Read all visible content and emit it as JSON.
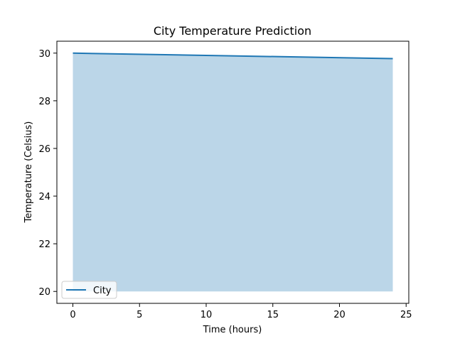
{
  "chart_data": {
    "type": "line",
    "title": "City Temperature Prediction",
    "xlabel": "Time (hours)",
    "ylabel": "Temperature (Celsius)",
    "xlim": [
      -1.2,
      25.2
    ],
    "ylim": [
      19.5,
      30.5
    ],
    "xticks": [
      0,
      5,
      10,
      15,
      20,
      25
    ],
    "yticks": [
      20,
      22,
      24,
      26,
      28,
      30
    ],
    "grid": false,
    "legend_position": "lower-left",
    "series": [
      {
        "name": "City",
        "color": "#1f77b4",
        "fill_color": "#1f77b4",
        "fill_alpha": 0.3,
        "fill_baseline": 20,
        "x": [
          0,
          24
        ],
        "y": [
          30.0,
          29.77
        ]
      }
    ]
  }
}
